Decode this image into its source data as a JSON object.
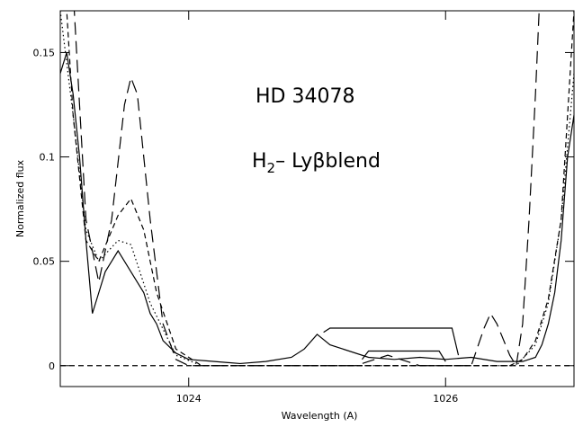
{
  "chart_data": {
    "type": "line",
    "annotation": "HD 34078",
    "label_main": "H",
    "label_sub": "2",
    "label_rest": "– Lyβblend",
    "xlabel": "Wavelength (A)",
    "ylabel": "Normalized flux",
    "xlim": [
      1023.0,
      1027.0
    ],
    "ylim": [
      -0.01,
      0.17
    ],
    "xticks": [
      1024,
      1026
    ],
    "yticks": [
      0,
      0.05,
      0.1,
      0.15
    ],
    "series": [
      {
        "style": "solid",
        "color": "#000000",
        "x": [
          1023.0,
          1023.05,
          1023.1,
          1023.15,
          1023.2,
          1023.25,
          1023.3,
          1023.35,
          1023.4,
          1023.45,
          1023.5,
          1023.55,
          1023.6,
          1023.65,
          1023.7,
          1023.75,
          1023.8,
          1023.9,
          1024.0,
          1024.2,
          1024.4,
          1024.6,
          1024.8,
          1024.9,
          1025.0,
          1025.1,
          1025.2,
          1025.4,
          1025.6,
          1025.8,
          1026.0,
          1026.2,
          1026.4,
          1026.6,
          1026.7,
          1026.75,
          1026.8,
          1026.85,
          1026.9,
          1026.95,
          1027.0
        ],
        "values": [
          0.14,
          0.15,
          0.13,
          0.1,
          0.06,
          0.025,
          0.035,
          0.045,
          0.05,
          0.055,
          0.05,
          0.045,
          0.04,
          0.035,
          0.025,
          0.02,
          0.012,
          0.006,
          0.003,
          0.002,
          0.001,
          0.002,
          0.004,
          0.008,
          0.015,
          0.01,
          0.008,
          0.004,
          0.003,
          0.004,
          0.003,
          0.004,
          0.002,
          0.002,
          0.004,
          0.01,
          0.02,
          0.035,
          0.06,
          0.1,
          0.12
        ]
      },
      {
        "style": "solid",
        "color": "#000000",
        "x": [
          1025.05,
          1025.1,
          1025.25,
          1026.05,
          1026.1
        ],
        "values": [
          0.016,
          0.018,
          0.018,
          0.018,
          0.005
        ]
      },
      {
        "style": "solid",
        "color": "#000000",
        "x": [
          1025.35,
          1025.4,
          1025.95,
          1026.0
        ],
        "values": [
          0.003,
          0.007,
          0.007,
          0.002
        ]
      },
      {
        "style": "longdash",
        "color": "#000000",
        "x": [
          1023.0,
          1023.1,
          1023.2,
          1023.3,
          1023.4,
          1023.5,
          1023.55,
          1023.6,
          1023.7,
          1023.8,
          1023.9,
          1024.0,
          1025.3,
          1025.45,
          1025.55,
          1025.65,
          1025.8,
          1026.2,
          1026.3,
          1026.35,
          1026.4,
          1026.5,
          1026.55,
          1026.6,
          1026.65,
          1026.7,
          1026.75
        ],
        "values": [
          0.3,
          0.18,
          0.07,
          0.04,
          0.07,
          0.125,
          0.138,
          0.13,
          0.07,
          0.02,
          0.003,
          0,
          0,
          0.003,
          0.005,
          0.003,
          0,
          0,
          0.018,
          0.025,
          0.02,
          0.005,
          0,
          0.02,
          0.07,
          0.13,
          0.2
        ]
      },
      {
        "style": "dash",
        "color": "#000000",
        "x": [
          1023.0,
          1023.1,
          1023.2,
          1023.3,
          1023.45,
          1023.55,
          1023.65,
          1023.75,
          1023.9,
          1024.1,
          1026.5,
          1026.6,
          1026.7,
          1026.8,
          1026.9,
          1027.0
        ],
        "values": [
          0.22,
          0.12,
          0.06,
          0.05,
          0.072,
          0.08,
          0.065,
          0.035,
          0.008,
          0,
          0,
          0.003,
          0.012,
          0.032,
          0.07,
          0.17
        ]
      },
      {
        "style": "dot",
        "color": "#000000",
        "x": [
          1023.0,
          1023.1,
          1023.2,
          1023.3,
          1023.45,
          1023.55,
          1023.7,
          1023.9,
          1024.1,
          1026.55,
          1026.7,
          1026.8,
          1026.9,
          1027.0
        ],
        "values": [
          0.17,
          0.12,
          0.065,
          0.05,
          0.06,
          0.058,
          0.03,
          0.005,
          0,
          0,
          0.01,
          0.03,
          0.07,
          0.14
        ]
      },
      {
        "style": "dash",
        "color": "#000000",
        "x": [
          1023.0,
          1027.0
        ],
        "values": [
          0,
          0
        ]
      }
    ]
  }
}
